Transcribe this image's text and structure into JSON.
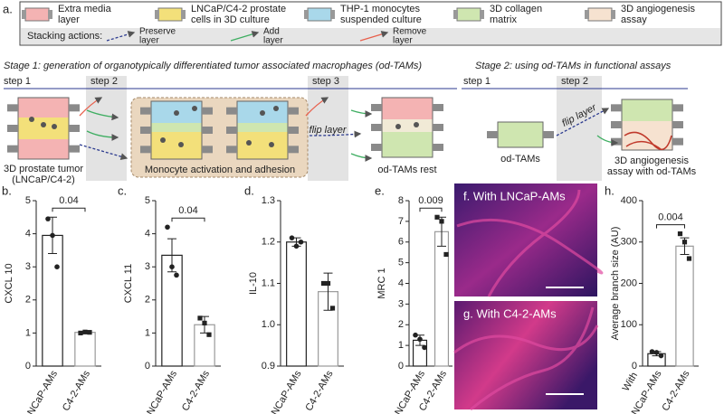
{
  "legend": {
    "label": "a.",
    "items": [
      {
        "lines": [
          "Extra media",
          "layer"
        ],
        "color": "#f4b3b3"
      },
      {
        "lines": [
          "LNCaP/C4-2 prostate",
          "cells in 3D culture"
        ],
        "color": "#f3e07a"
      },
      {
        "lines": [
          "THP-1 monocytes",
          "suspended culture"
        ],
        "color": "#a9d8ea"
      },
      {
        "lines": [
          "3D collagen",
          "matrix"
        ],
        "color": "#cfe6b0"
      },
      {
        "lines": [
          "3D angiogenesis",
          "assay"
        ],
        "color": "#f6e2d0"
      }
    ],
    "actions_title": "Stacking actions:",
    "actions": [
      {
        "lines": [
          "Preserve",
          "layer"
        ],
        "color": "#2b3a8f"
      },
      {
        "lines": [
          "Add",
          "layer"
        ],
        "color": "#3fae62"
      },
      {
        "lines": [
          "Remove",
          "layer"
        ],
        "color": "#e8604c"
      }
    ]
  },
  "stage1": {
    "title": "Stage 1: generation of organotypically differentiated tumor associated macrophages (od-TAMs)",
    "steps": [
      "step 1",
      "step 2",
      "step 3"
    ],
    "tumor_label": [
      "3D prostate tumor",
      "(LNCaP/C4-2)"
    ],
    "activation_label": "Monocyte activation and adhesion",
    "flip_label": "flip layer",
    "rest_label": "od-TAMs rest"
  },
  "stage2": {
    "title": "Stage 2: using od-TAMs in functional assays",
    "steps": [
      "step 1",
      "step 2"
    ],
    "odtam_label": "od-TAMs",
    "flip_label": "flip layer",
    "assay_label": [
      "3D angiogenesis",
      "assay with od-TAMs"
    ]
  },
  "images": [
    {
      "label": "f. With LNCaP-AMs"
    },
    {
      "label": "g. With C4-2-AMs"
    }
  ],
  "chart_data": [
    {
      "type": "bar",
      "title": "b.",
      "ylabel": "CXCL 10",
      "categories": [
        "LNCaP-AMs",
        "C4-2-AMs"
      ],
      "values": [
        3.95,
        1.02
      ],
      "errors": [
        0.55,
        0.02
      ],
      "points": [
        [
          4.45,
          3.95,
          3.0
        ],
        [
          1.0,
          1.03,
          1.02
        ]
      ],
      "annotation": "0.04",
      "ylim": [
        0,
        5
      ],
      "yticks": [
        0,
        1,
        2,
        3,
        4,
        5
      ],
      "marker": [
        "circle",
        "square"
      ]
    },
    {
      "type": "bar",
      "title": "c.",
      "ylabel": "CXCL 11",
      "categories": [
        "LNCaP-AMs",
        "C4-2-AMs"
      ],
      "values": [
        3.35,
        1.25
      ],
      "errors": [
        0.5,
        0.25
      ],
      "points": [
        [
          4.2,
          3.0,
          2.75
        ],
        [
          1.45,
          1.3,
          0.95
        ]
      ],
      "annotation": "0.04",
      "ylim": [
        0,
        5
      ],
      "yticks": [
        0,
        1,
        2,
        3,
        4,
        5
      ],
      "marker": [
        "circle",
        "square"
      ]
    },
    {
      "type": "bar",
      "title": "d.",
      "ylabel": "IL-10",
      "categories": [
        "LNCaP-AMs",
        "C4-2-AMs"
      ],
      "values": [
        1.2,
        1.08
      ],
      "errors": [
        0.01,
        0.045
      ],
      "points": [
        [
          1.21,
          1.19,
          1.2
        ],
        [
          1.1,
          1.1,
          1.04
        ]
      ],
      "ylim": [
        0.9,
        1.3
      ],
      "yticks": [
        0.9,
        {
          "value": 1.0,
          "label": "1.0"
        },
        1.1,
        1.2,
        1.3
      ],
      "marker": [
        "circle",
        "square"
      ]
    },
    {
      "type": "bar",
      "title": "e.",
      "ylabel": "MRC 1",
      "categories": [
        "LNCaP-AMs",
        "C4-2-AMs"
      ],
      "values": [
        1.25,
        6.5
      ],
      "errors": [
        0.25,
        0.7
      ],
      "points": [
        [
          1.5,
          1.3,
          0.9
        ],
        [
          7.2,
          7.0,
          5.4
        ]
      ],
      "annotation": "0.009",
      "ylim": [
        0,
        8
      ],
      "yticks": [
        0,
        1,
        2,
        3,
        4,
        5,
        6,
        7,
        8
      ],
      "marker": [
        "circle",
        "square"
      ]
    },
    {
      "type": "bar",
      "title": "h.",
      "ylabel": "Average branch size (AU)",
      "xlabel": "With",
      "categories": [
        "LNCaP-AMs",
        "C4-2-AMs"
      ],
      "values": [
        30,
        290
      ],
      "errors": [
        5,
        20
      ],
      "points": [
        [
          35,
          33,
          25
        ],
        [
          320,
          300,
          260
        ]
      ],
      "annotation": "0.004",
      "ylim": [
        0,
        400
      ],
      "yticks": [
        0,
        100,
        200,
        300,
        400
      ],
      "marker": [
        "circle",
        "square"
      ]
    }
  ]
}
